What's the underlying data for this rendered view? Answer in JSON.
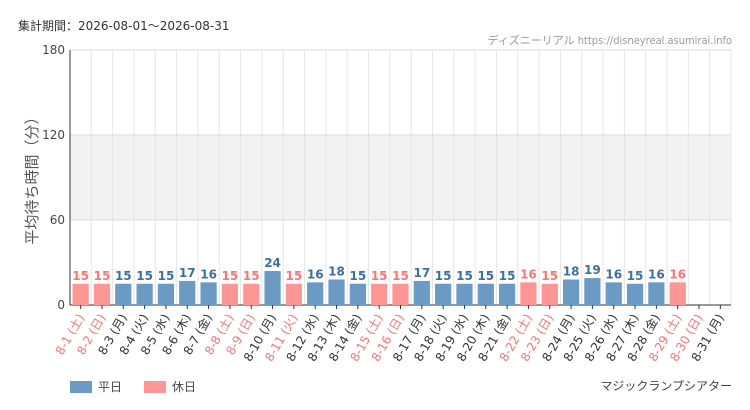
{
  "header": {
    "period": "集計期間：2026-08-01～2026-08-31",
    "source": "ディズニーリアル https://disneyreal.asumirai.info"
  },
  "footer": {
    "attraction": "マジックランプシアター"
  },
  "legend": [
    {
      "label": "平日",
      "color": "#6b9ac4"
    },
    {
      "label": "休日",
      "color": "#ff9696"
    }
  ],
  "chart_data": {
    "type": "bar",
    "ylabel": "平均待ち時間（分）",
    "xlabel": "",
    "ylim": [
      0,
      180
    ],
    "yticks": [
      0,
      60,
      120,
      180
    ],
    "categories": [
      "8-1 (土)",
      "8-2 (日)",
      "8-3 (月)",
      "8-4 (火)",
      "8-5 (水)",
      "8-6 (木)",
      "8-7 (金)",
      "8-8 (土)",
      "8-9 (日)",
      "8-10 (月)",
      "8-11 (火)",
      "8-12 (水)",
      "8-13 (木)",
      "8-14 (金)",
      "8-15 (土)",
      "8-16 (日)",
      "8-17 (月)",
      "8-18 (火)",
      "8-19 (水)",
      "8-20 (木)",
      "8-21 (金)",
      "8-22 (土)",
      "8-23 (日)",
      "8-24 (月)",
      "8-25 (火)",
      "8-26 (水)",
      "8-27 (木)",
      "8-28 (金)",
      "8-29 (土)",
      "8-30 (日)",
      "8-31 (月)"
    ],
    "values": [
      15,
      15,
      15,
      15,
      15,
      17,
      16,
      15,
      15,
      24,
      15,
      16,
      18,
      15,
      15,
      15,
      17,
      15,
      15,
      15,
      15,
      16,
      15,
      18,
      19,
      16,
      15,
      16,
      16,
      null,
      null
    ],
    "day_type": [
      "休日",
      "休日",
      "平日",
      "平日",
      "平日",
      "平日",
      "平日",
      "休日",
      "休日",
      "平日",
      "休日",
      "平日",
      "平日",
      "平日",
      "休日",
      "休日",
      "平日",
      "平日",
      "平日",
      "平日",
      "平日",
      "休日",
      "休日",
      "平日",
      "平日",
      "平日",
      "平日",
      "平日",
      "休日",
      "休日",
      "平日"
    ],
    "colors": {
      "weekday_bar": "#6b9ac4",
      "holiday_bar": "#ff9696",
      "weekday_text": "#3d6f9e",
      "holiday_text": "#ff7373",
      "band": "#f2f2f2"
    },
    "shaded_band": [
      60,
      120
    ],
    "grid": true
  }
}
